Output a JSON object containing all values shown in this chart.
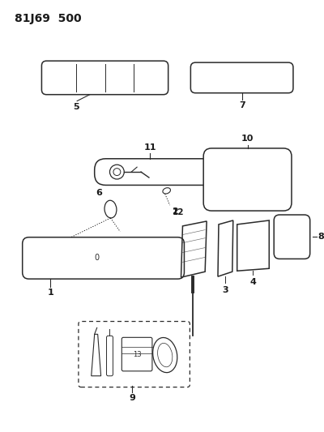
{
  "title": "81J69  500",
  "bg_color": "#ffffff",
  "line_color": "#2a2a2a",
  "text_color": "#1a1a1a",
  "title_fontsize": 10,
  "label_fontsize": 8
}
